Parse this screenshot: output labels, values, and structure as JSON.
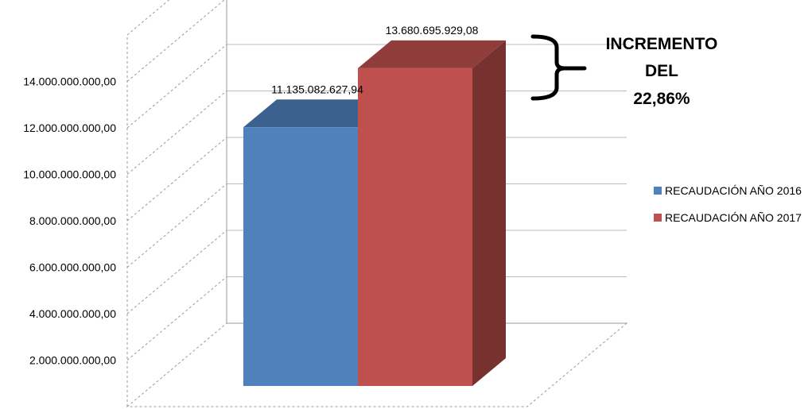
{
  "chart_data": {
    "type": "bar",
    "categories": [
      ""
    ],
    "series": [
      {
        "name": "RECAUDACIÓN AÑO 2016",
        "values": [
          11135082627.94
        ],
        "label": "11.135.082.627,94",
        "color": "#4f81bd"
      },
      {
        "name": "RECAUDACIÓN AÑO 2017",
        "values": [
          13680695929.08
        ],
        "label": "13.680.695.929,08",
        "color": "#c0504d"
      }
    ],
    "yticks": [
      0,
      2000000000,
      4000000000,
      6000000000,
      8000000000,
      10000000000,
      12000000000,
      14000000000
    ],
    "ytick_labels": [
      "",
      "2.000.000.000,00",
      "4.000.000.000,00",
      "6.000.000.000,00",
      "8.000.000.000,00",
      "10.000.000.000,00",
      "12.000.000.000,00",
      "14.000.000.000,00"
    ],
    "ylim": [
      0,
      16000000000
    ],
    "grid": true,
    "three_d": true,
    "legend_position": "right",
    "annotation": {
      "lines": [
        "INCREMENTO",
        "DEL",
        "22,86%"
      ]
    }
  }
}
